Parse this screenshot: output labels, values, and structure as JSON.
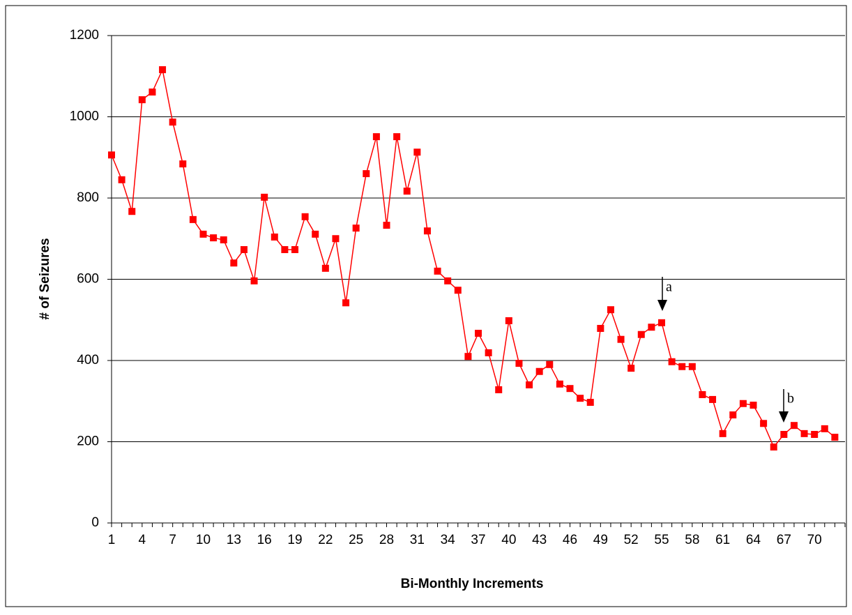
{
  "chart_data": {
    "type": "line",
    "xlabel": "Bi-Monthly Increments",
    "ylabel": "# of Seizures",
    "categories": [
      "1",
      null,
      null,
      "4",
      null,
      null,
      "7",
      null,
      null,
      "10",
      null,
      null,
      "13",
      null,
      null,
      "16",
      null,
      null,
      "19",
      null,
      null,
      "22",
      null,
      null,
      "25",
      null,
      null,
      "28",
      null,
      null,
      "31",
      null,
      null,
      "34",
      null,
      null,
      "37",
      null,
      null,
      "40",
      null,
      null,
      "43",
      null,
      null,
      "46",
      null,
      null,
      "49",
      null,
      null,
      "52",
      null,
      null,
      "55",
      null,
      null,
      "58",
      null,
      null,
      "61",
      null,
      null,
      "64",
      null,
      null,
      "67",
      null,
      null,
      "70",
      null,
      null
    ],
    "series": [
      {
        "name": "Seizures",
        "color": "#ff0000",
        "values": [
          906,
          845,
          767,
          1042,
          1061,
          1116,
          987,
          884,
          747,
          711,
          702,
          697,
          640,
          673,
          596,
          802,
          704,
          673,
          673,
          754,
          711,
          627,
          700,
          542,
          726,
          860,
          951,
          733,
          951,
          817,
          913,
          719,
          620,
          596,
          573,
          410,
          467,
          419,
          328,
          498,
          393,
          340,
          373,
          390,
          342,
          331,
          307,
          297,
          479,
          525,
          452,
          381,
          464,
          482,
          493,
          397,
          385,
          385,
          316,
          304,
          220,
          266,
          294,
          290,
          245,
          187,
          218,
          240,
          220,
          218,
          232,
          211
        ]
      }
    ],
    "ylim": [
      0,
      1200
    ],
    "yticks": [
      0,
      200,
      400,
      600,
      800,
      1000,
      1200
    ],
    "grid": true,
    "annotations": [
      "a",
      "b"
    ]
  }
}
